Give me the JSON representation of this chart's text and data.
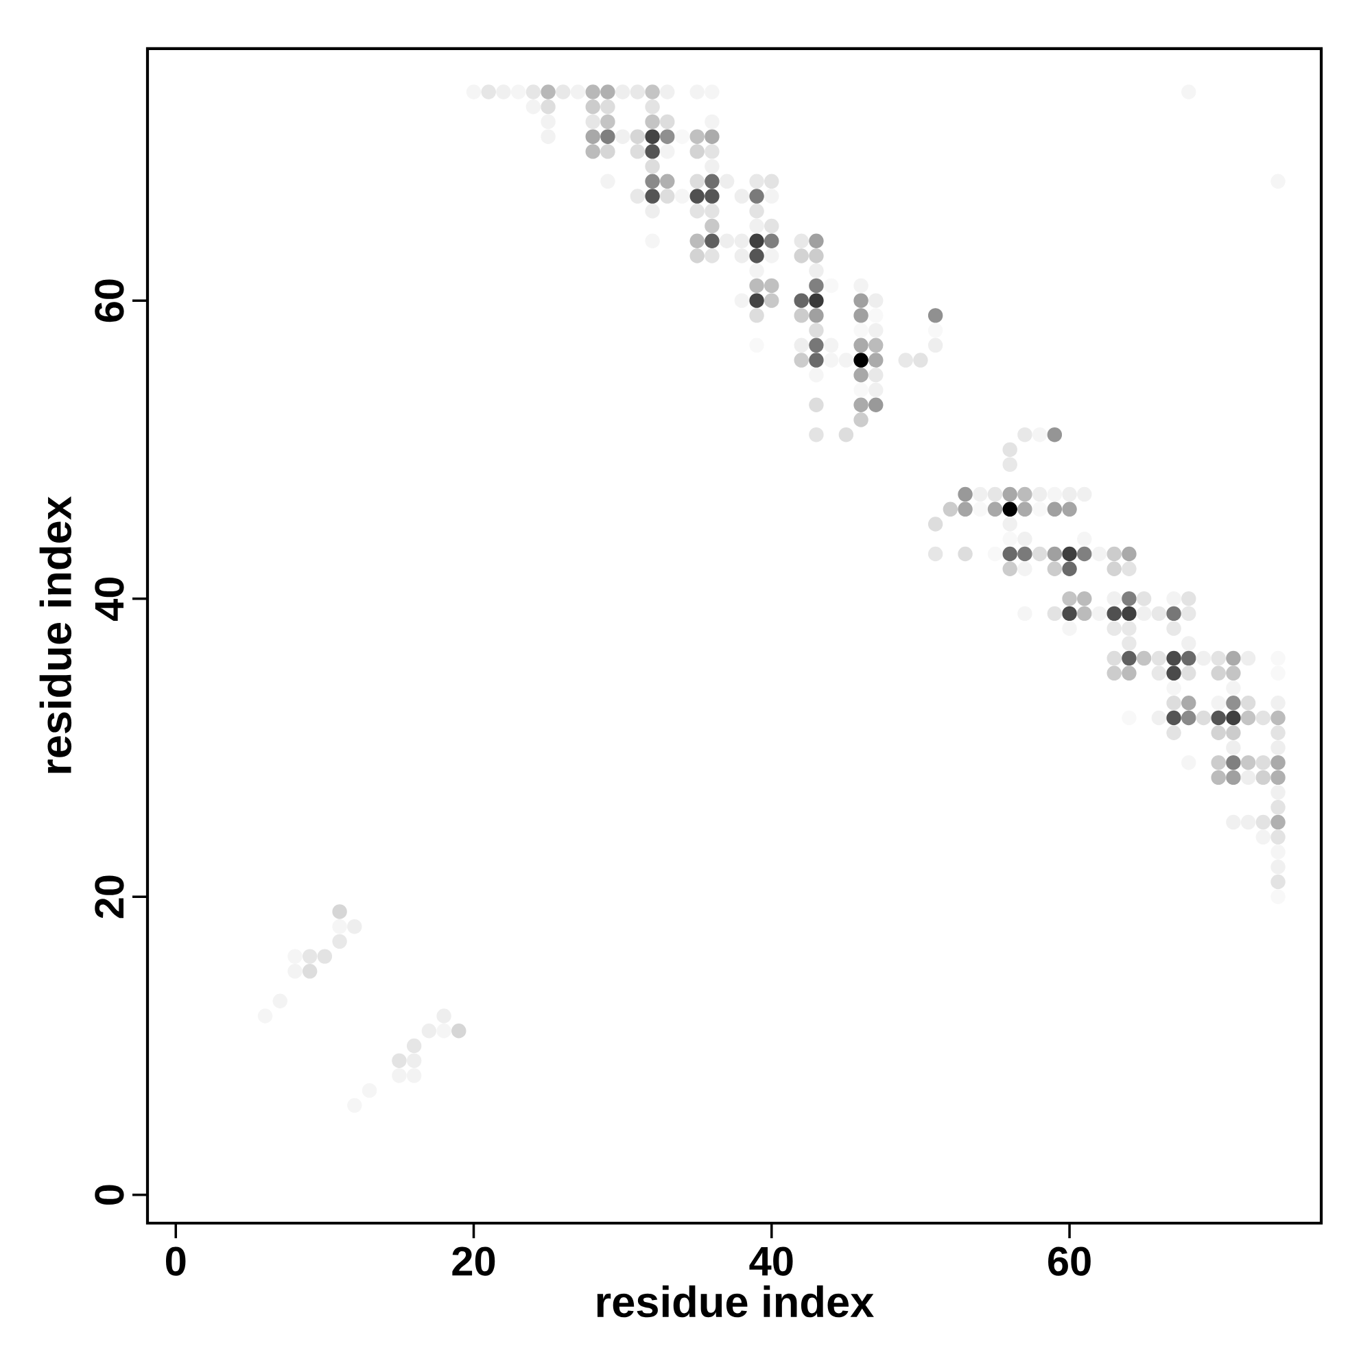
{
  "chart_data": {
    "type": "scatter",
    "xlabel": "residue index",
    "ylabel": "residue index",
    "xlim": [
      -1.9,
      76.9
    ],
    "ylim": [
      -1.9,
      76.9
    ],
    "xticks": [
      0,
      20,
      40,
      60
    ],
    "yticks": [
      0,
      20,
      40,
      60
    ],
    "marker": "circle",
    "series": [
      {
        "x": [
          20,
          21,
          22,
          23,
          24,
          25,
          26,
          27,
          28,
          29,
          30,
          31,
          32,
          33,
          35,
          36,
          68,
          24,
          25,
          28,
          29,
          32,
          25,
          28,
          29,
          32,
          33,
          36,
          25,
          28,
          29,
          30,
          31,
          32,
          33,
          34,
          35,
          36,
          28,
          29,
          31,
          32,
          33,
          35,
          36,
          32,
          36,
          29,
          32,
          33,
          35,
          36,
          37,
          39,
          40,
          74,
          31,
          32,
          33,
          34,
          35,
          36,
          38,
          39,
          40,
          32,
          35,
          36,
          39,
          36,
          39,
          40,
          32,
          35,
          36,
          37,
          38,
          39,
          40,
          42,
          43,
          35,
          36,
          38,
          39,
          40,
          42,
          43,
          39,
          43,
          39,
          40,
          43,
          44,
          46,
          38,
          39,
          40,
          42,
          43,
          46,
          47,
          39,
          42,
          43,
          46,
          47,
          51,
          43,
          46,
          47,
          51,
          39,
          42,
          43,
          44,
          46,
          47,
          51,
          42,
          43,
          44,
          45,
          46,
          47,
          49,
          50,
          43,
          46,
          47,
          46,
          47,
          43,
          46,
          47,
          46,
          43,
          45,
          57,
          58,
          59,
          56,
          56,
          53,
          54,
          55,
          56,
          57,
          58,
          59,
          60,
          61,
          52,
          53,
          54,
          55,
          56,
          57,
          58,
          59,
          60,
          51,
          56,
          56,
          57,
          61,
          51,
          53,
          55,
          56,
          57,
          58,
          59,
          60,
          61,
          62,
          63,
          64,
          56,
          57,
          59,
          60,
          63,
          64,
          60,
          61,
          63,
          64,
          65,
          67,
          68,
          57,
          59,
          60,
          61,
          62,
          63,
          64,
          65,
          66,
          67,
          68,
          60,
          63,
          64,
          67,
          64,
          68,
          63,
          64,
          65,
          66,
          67,
          68,
          69,
          70,
          71,
          72,
          74,
          63,
          64,
          66,
          67,
          68,
          70,
          71,
          74,
          67,
          71,
          67,
          68,
          70,
          71,
          72,
          74,
          64,
          66,
          67,
          68,
          69,
          70,
          71,
          72,
          73,
          74,
          67,
          70,
          71,
          74,
          71,
          74,
          68,
          70,
          71,
          72,
          73,
          74,
          70,
          71,
          72,
          73,
          74,
          74,
          74,
          71,
          72,
          73,
          74,
          73,
          74,
          74,
          74,
          74,
          74,
          11,
          11,
          12,
          11,
          8,
          9,
          10,
          8,
          9,
          7,
          6,
          18,
          17,
          18,
          19,
          16,
          15,
          16,
          15,
          16,
          13,
          12
        ],
        "values": [
          74,
          74,
          74,
          74,
          74,
          74,
          74,
          74,
          74,
          74,
          74,
          74,
          74,
          74,
          74,
          74,
          74,
          73,
          73,
          73,
          73,
          73,
          72,
          72,
          72,
          72,
          72,
          72,
          71,
          71,
          71,
          71,
          71,
          71,
          71,
          71,
          71,
          71,
          70,
          70,
          70,
          70,
          70,
          70,
          70,
          69,
          69,
          68,
          68,
          68,
          68,
          68,
          68,
          68,
          68,
          68,
          67,
          67,
          67,
          67,
          67,
          67,
          67,
          67,
          67,
          66,
          66,
          66,
          66,
          65,
          65,
          65,
          64,
          64,
          64,
          64,
          64,
          64,
          64,
          64,
          64,
          63,
          63,
          63,
          63,
          63,
          63,
          63,
          62,
          62,
          61,
          61,
          61,
          61,
          61,
          60,
          60,
          60,
          60,
          60,
          60,
          60,
          59,
          59,
          59,
          59,
          59,
          59,
          58,
          58,
          58,
          58,
          57,
          57,
          57,
          57,
          57,
          57,
          57,
          56,
          56,
          56,
          56,
          56,
          56,
          56,
          56,
          55,
          55,
          55,
          54,
          54,
          53,
          53,
          53,
          52,
          51,
          51,
          51,
          51,
          51,
          50,
          49,
          47,
          47,
          47,
          47,
          47,
          47,
          47,
          47,
          47,
          46,
          46,
          46,
          46,
          46,
          46,
          46,
          46,
          46,
          45,
          45,
          44,
          44,
          44,
          43,
          43,
          43,
          43,
          43,
          43,
          43,
          43,
          43,
          43,
          43,
          43,
          42,
          42,
          42,
          42,
          42,
          42,
          40,
          40,
          40,
          40,
          40,
          40,
          40,
          39,
          39,
          39,
          39,
          39,
          39,
          39,
          39,
          39,
          39,
          39,
          38,
          38,
          38,
          38,
          37,
          37,
          36,
          36,
          36,
          36,
          36,
          36,
          36,
          36,
          36,
          36,
          36,
          35,
          35,
          35,
          35,
          35,
          35,
          35,
          35,
          34,
          34,
          33,
          33,
          33,
          33,
          33,
          33,
          32,
          32,
          32,
          32,
          32,
          32,
          32,
          32,
          32,
          32,
          31,
          31,
          31,
          31,
          30,
          30,
          29,
          29,
          29,
          29,
          29,
          29,
          28,
          28,
          28,
          28,
          28,
          27,
          26,
          25,
          25,
          25,
          25,
          24,
          24,
          23,
          22,
          21,
          20,
          19,
          18,
          18,
          17,
          16,
          16,
          16,
          15,
          15,
          13,
          12,
          12,
          11,
          11,
          11,
          10,
          9,
          9,
          8,
          8,
          7,
          6
        ],
        "colors": [
          "#f5f5f5",
          "#e6e6e6",
          "#f0f0f0",
          "#f5f5f5",
          "#e6e6e6",
          "#b8b8b8",
          "#e8e8e8",
          "#f2f2f2",
          "#b8b8b8",
          "#b0b0b0",
          "#eeeeee",
          "#e8e8e8",
          "#c4c4c4",
          "#f0f0f0",
          "#f3f3f3",
          "#f5f5f5",
          "#f5f5f5",
          "#f3f3f3",
          "#dedede",
          "#cccccc",
          "#dddddd",
          "#e3e3e3",
          "#f2f2f2",
          "#e6e6e6",
          "#c4c4c4",
          "#c4c4c4",
          "#dddddd",
          "#f3f3f3",
          "#f2f2f2",
          "#a8a8a8",
          "#7f7f7f",
          "#f0f0f0",
          "#d6d6d6",
          "#444444",
          "#8f8f8f",
          "#f8f8f8",
          "#c0c0c0",
          "#ababab",
          "#bbbbbb",
          "#d6d6d6",
          "#dddddd",
          "#555555",
          "#f3f3f3",
          "#d3d3d3",
          "#e3e3e3",
          "#dddddd",
          "#f0f0f0",
          "#f3f3f3",
          "#8a8a8a",
          "#b0b0b0",
          "#dddddd",
          "#6e6e6e",
          "#eeeeee",
          "#e8e8e8",
          "#e3e3e3",
          "#f5f5f5",
          "#e8e8e8",
          "#555555",
          "#dddddd",
          "#f5f5f5",
          "#505050",
          "#555555",
          "#eeeeee",
          "#7a7a7a",
          "#f3f3f3",
          "#eeeeee",
          "#e3e3e3",
          "#e3e3e3",
          "#e3e3e3",
          "#c8c8c8",
          "#f0f0f0",
          "#e3e3e3",
          "#f5f5f5",
          "#bbbbbb",
          "#5f5f5f",
          "#eeeeee",
          "#eeeeee",
          "#3f3f3f",
          "#7f7f7f",
          "#e8e8e8",
          "#a0a0a0",
          "#d3d3d3",
          "#e3e3e3",
          "#eeeeee",
          "#555555",
          "#f3f3f3",
          "#d3d3d3",
          "#cccccc",
          "#f3f3f3",
          "#eeeeee",
          "#bbbbbb",
          "#c0c0c0",
          "#808080",
          "#f8f8f8",
          "#f3f3f3",
          "#f3f3f3",
          "#444444",
          "#c8c8c8",
          "#666666",
          "#3a3a3a",
          "#a0a0a0",
          "#eeeeee",
          "#dddddd",
          "#cccccc",
          "#a0a0a0",
          "#a0a0a0",
          "#f8f8f8",
          "#909090",
          "#dddddd",
          "#f8f8f8",
          "#f0f0f0",
          "#f8f8f8",
          "#f8f8f8",
          "#eeeeee",
          "#777777",
          "#f3f3f3",
          "#aaaaaa",
          "#bbbbbb",
          "#eeeeee",
          "#cccccc",
          "#6a6a6a",
          "#f5f5f5",
          "#f3f3f3",
          "#000000",
          "#aaaaaa",
          "#e8e8e8",
          "#e3e3e3",
          "#f5f5f5",
          "#a8a8a8",
          "#e8e8e8",
          "#f8f8f8",
          "#f0f0f0",
          "#dddddd",
          "#aaaaaa",
          "#999999",
          "#cccccc",
          "#e3e3e3",
          "#dddddd",
          "#e8e8e8",
          "#f5f5f5",
          "#959595",
          "#e3e3e3",
          "#e8e8e8",
          "#999999",
          "#f0f0f0",
          "#e6e6e6",
          "#a8a8a8",
          "#bbbbbb",
          "#eeeeee",
          "#f5f5f5",
          "#eeeeee",
          "#f0f0f0",
          "#cccccc",
          "#a5a5a5",
          "#f8f8f8",
          "#a8a8a8",
          "#000000",
          "#aaaaaa",
          "#f8f8f8",
          "#a0a0a0",
          "#a5a5a5",
          "#dddddd",
          "#f0f0f0",
          "#f8f8f8",
          "#f0f0f0",
          "#f5f5f5",
          "#e6e6e6",
          "#dddddd",
          "#f8f8f8",
          "#6a6a6a",
          "#7a7a7a",
          "#dddddd",
          "#a0a0a0",
          "#3f3f3f",
          "#808080",
          "#f3f3f3",
          "#cccccc",
          "#aaaaaa",
          "#cccccc",
          "#f3f3f3",
          "#cccccc",
          "#6a6a6a",
          "#d3d3d3",
          "#e3e3e3",
          "#c4c4c4",
          "#bbbbbb",
          "#f0f0f0",
          "#7f7f7f",
          "#e3e3e3",
          "#f3f3f3",
          "#e3e3e3",
          "#f5f5f5",
          "#e3e3e3",
          "#4a4a4a",
          "#bbbbbb",
          "#f3f3f3",
          "#505050",
          "#404040",
          "#f0f0f0",
          "#e8e8e8",
          "#777777",
          "#e8e8e8",
          "#f5f5f5",
          "#e8e8e8",
          "#e8e8e8",
          "#e8e8e8",
          "#e8e8e8",
          "#f0f0f0",
          "#dddddd",
          "#606060",
          "#c4c4c4",
          "#e3e3e3",
          "#4a4a4a",
          "#6a6a6a",
          "#f0f0f0",
          "#e3e3e3",
          "#aaaaaa",
          "#eeeeee",
          "#f8f8f8",
          "#cccccc",
          "#bbbbbb",
          "#e8e8e8",
          "#4a4a4a",
          "#e0e0e0",
          "#d3d3d3",
          "#c4c4c4",
          "#f8f8f8",
          "#f5f5f5",
          "#f3f3f3",
          "#dddddd",
          "#aaaaaa",
          "#f3f3f3",
          "#909090",
          "#dddddd",
          "#f0f0f0",
          "#f8f8f8",
          "#f0f0f0",
          "#555555",
          "#8a8a8a",
          "#dddddd",
          "#555555",
          "#404040",
          "#c4c4c4",
          "#e3e3e3",
          "#bbbbbb",
          "#e3e3e3",
          "#d3d3d3",
          "#cccccc",
          "#e3e3e3",
          "#eeeeee",
          "#eeeeee",
          "#f5f5f5",
          "#cccccc",
          "#808080",
          "#c8c8c8",
          "#dddddd",
          "#aaaaaa",
          "#bbbbbb",
          "#a0a0a0",
          "#eeeeee",
          "#d0d0d0",
          "#b0b0b0",
          "#f0f0f0",
          "#e3e3e3",
          "#f0f0f0",
          "#f0f0f0",
          "#e3e3e3",
          "#b0b0b0",
          "#f3f3f3",
          "#e3e3e3",
          "#f5f5f5",
          "#f0f0f0",
          "#e3e3e3",
          "#f8f8f8",
          "#d6d6d6",
          "#f5f5f5",
          "#eeeeee",
          "#e8e8e8",
          "#f5f5f5",
          "#e6e6e6",
          "#e3e3e3",
          "#f3f3f3",
          "#dddddd",
          "#f3f3f3",
          "#f5f5f5",
          "#eeeeee",
          "#eeeeee",
          "#f5f5f5",
          "#d6d6d6",
          "#e6e6e6",
          "#e3e3e3",
          "#eeeeee",
          "#f3f3f3",
          "#f3f3f3",
          "#f5f5f5",
          "#f5f5f5"
        ]
      }
    ]
  }
}
